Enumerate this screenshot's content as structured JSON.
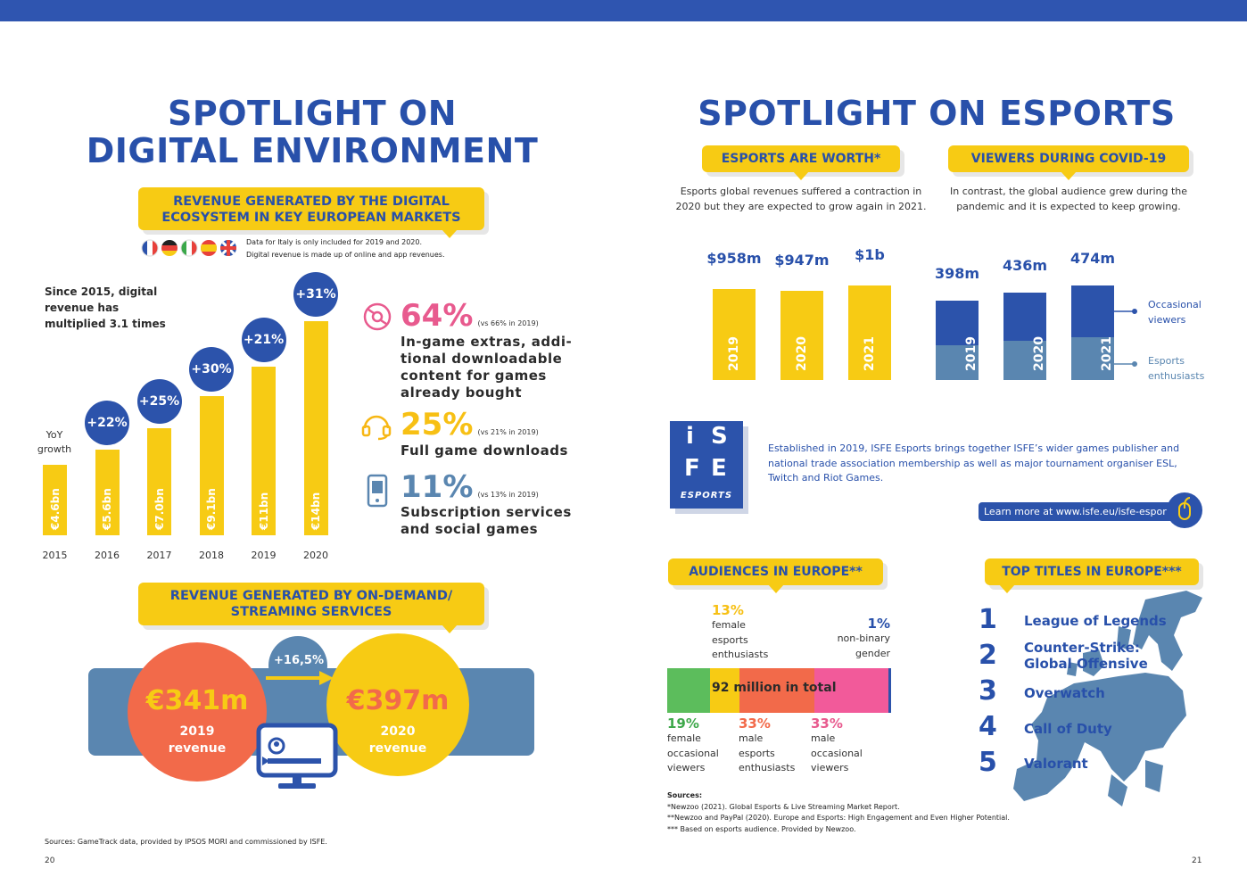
{
  "left": {
    "title_line1": "SPOTLIGHT ON",
    "title_line2": "DIGITAL ENVIRONMENT",
    "banner1_line1": "REVENUE GENERATED BY THE DIGITAL",
    "banner1_line2": "ECOSYSTEM IN KEY EUROPEAN MARKETS",
    "note_line1": "Data for Italy is only included for 2019 and 2020.",
    "note_line2": "Digital revenue is made up of online and app revenues.",
    "intro_line1": "Since 2015, digital",
    "intro_line2": "revenue has",
    "intro_line3": "multiplied 3.1 times",
    "yoy_line1": "YoY",
    "yoy_line2": "growth",
    "stats": [
      {
        "pct": "64%",
        "note": "(vs 66% in 2019)",
        "desc_lines": [
          "In-game extras, addi-",
          "tional downloadable",
          "content for games",
          "already bought"
        ],
        "icon": "gamepad-disc-icon"
      },
      {
        "pct": "25%",
        "note": "(vs 21% in 2019)",
        "desc_lines": [
          "Full game downloads"
        ],
        "icon": "headset-icon"
      },
      {
        "pct": "11%",
        "note": "(vs 13% in 2019)",
        "desc_lines": [
          "Subscription services",
          "and social games"
        ],
        "icon": "smartphone-icon"
      }
    ],
    "banner2_line1": "REVENUE GENERATED BY ON-DEMAND/",
    "banner2_line2": "STREAMING SERVICES",
    "growth": "+16,5%",
    "rev2019_value": "€341m",
    "rev2019_line1": "2019",
    "rev2019_line2": "revenue",
    "rev2020_value": "€397m",
    "rev2020_line1": "2020",
    "rev2020_line2": "revenue",
    "sources": "Sources: GameTrack data, provided by IPSOS MORI and commissioned by ISFE.",
    "page_number": "20"
  },
  "chart_data": [
    {
      "type": "bar",
      "title": "Revenue generated by the digital ecosystem in key European markets",
      "categories": [
        "2015",
        "2016",
        "2017",
        "2018",
        "2019",
        "2020"
      ],
      "values": [
        4.6,
        5.6,
        7.0,
        9.1,
        11,
        14
      ],
      "value_labels": [
        "€4.6bn",
        "€5.6bn",
        "€7.0bn",
        "€9.1bn",
        "€11bn",
        "€14bn"
      ],
      "yoy_growth": [
        "",
        "+22%",
        "+25%",
        "+30%",
        "+21%",
        "+31%"
      ],
      "unit": "€bn"
    },
    {
      "type": "bar",
      "title": "Esports are worth",
      "categories": [
        "2019",
        "2020",
        "2021"
      ],
      "values": [
        958,
        947,
        1000
      ],
      "value_labels": [
        "$958m",
        "$947m",
        "$1b"
      ],
      "unit": "$m"
    },
    {
      "type": "bar",
      "stacked": true,
      "title": "Viewers during COVID-19",
      "categories": [
        "2019",
        "2020",
        "2021"
      ],
      "totals": [
        398,
        436,
        474
      ],
      "total_labels": [
        "398m",
        "436m",
        "474m"
      ],
      "series": [
        {
          "name": "Esports enthusiasts",
          "values": [
            175,
            197,
            215
          ]
        },
        {
          "name": "Occasional viewers",
          "values": [
            223,
            239,
            259
          ]
        }
      ],
      "unit": "m"
    },
    {
      "type": "bar",
      "stacked": true,
      "title": "Audiences in Europe",
      "total_label": "92 million in total",
      "series": [
        {
          "name": "female occasional viewers",
          "value": 19,
          "label": "19%",
          "color": "#5cbd5c"
        },
        {
          "name": "female esports enthusiasts",
          "value": 13,
          "label": "13%",
          "color": "#f7cb14"
        },
        {
          "name": "male esports enthusiasts",
          "value": 33,
          "label": "33%",
          "color": "#f26a4a"
        },
        {
          "name": "male occasional viewers",
          "value": 33,
          "label": "33%",
          "color": "#f25a9a"
        },
        {
          "name": "non-binary gender",
          "value": 1,
          "label": "1%",
          "color": "#2c53ab"
        }
      ]
    }
  ],
  "right": {
    "title": "SPOTLIGHT ON ESPORTS",
    "worth_banner": "ESPORTS ARE WORTH*",
    "worth_text_line1": "Esports global revenues suffered a contraction in",
    "worth_text_line2": "2020 but they are expected to grow again in 2021.",
    "viewers_banner": "VIEWERS DURING COVID-19",
    "viewers_text_line1": "In contrast, the global audience grew during the",
    "viewers_text_line2": "pandemic and it is expected to keep growing.",
    "legend_occ_line1": "Occasional",
    "legend_occ_line2": "viewers",
    "legend_ent_line1": "Esports",
    "legend_ent_line2": "enthusiasts",
    "logo_i": "i",
    "logo_s": "S",
    "logo_f": "F",
    "logo_e": "E",
    "logo_sub": "ESPORTS",
    "isfe_text_line1": "Established in 2019, ISFE Esports brings together ISFE’s wider games publisher and",
    "isfe_text_line2": "national trade association membership as well as major tournament organiser ESL,",
    "isfe_text_line3": "Twitch and Riot Games.",
    "learn_more": "Learn more at www.isfe.eu/isfe-esports",
    "audiences_banner": "AUDIENCES IN EUROPE**",
    "aud_fe_pct": "13%",
    "aud_fe_l1": "female",
    "aud_fe_l2": "esports",
    "aud_fe_l3": "enthusiasts",
    "aud_nb_pct": "1%",
    "aud_nb_l1": "non-binary",
    "aud_nb_l2": "gender",
    "aud_fo_pct": "19%",
    "aud_fo_l1": "female",
    "aud_fo_l2": "occasional",
    "aud_fo_l3": "viewers",
    "aud_me_pct": "33%",
    "aud_me_l1": "male",
    "aud_me_l2": "esports",
    "aud_me_l3": "enthusiasts",
    "aud_mo_pct": "33%",
    "aud_mo_l1": "male",
    "aud_mo_l2": "occasional",
    "aud_mo_l3": "viewers",
    "titles_banner": "TOP TITLES IN EUROPE***",
    "titles": [
      {
        "rank": "1",
        "lines": [
          "League of Legends"
        ]
      },
      {
        "rank": "2",
        "lines": [
          "Counter-Strike:",
          "Global Offensive"
        ]
      },
      {
        "rank": "3",
        "lines": [
          "Overwatch"
        ]
      },
      {
        "rank": "4",
        "lines": [
          "Call of Duty"
        ]
      },
      {
        "rank": "5",
        "lines": [
          "Valorant"
        ]
      }
    ],
    "sources_head": "Sources:",
    "source1": "*Newzoo (2021). Global Esports & Live Streaming Market Report.",
    "source2": "**Newzoo and PayPal (2020). Europe and Esports: High Engagement and Even Higher Potential.",
    "source3": "*** Based on esports audience. Provided by Newzoo.",
    "page_number": "21"
  },
  "colors": {
    "brand_blue": "#2850aa",
    "yellow": "#f7cb14",
    "orange": "#f26a4a",
    "pink": "#e85a8e",
    "steel": "#5a86b0"
  }
}
